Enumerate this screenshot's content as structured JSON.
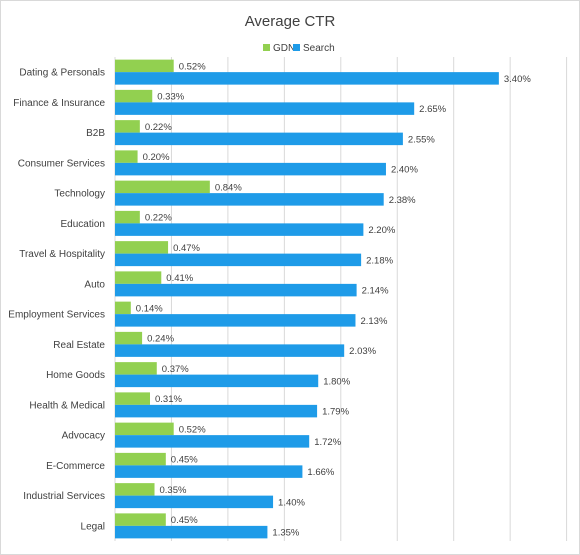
{
  "chart_data": {
    "type": "bar",
    "orientation": "horizontal",
    "title": "Average CTR",
    "legend_position": "top",
    "grid": true,
    "xlim": [
      0,
      0.04
    ],
    "value_format": "percent_2dp",
    "categories": [
      "Dating & Personals",
      "Finance & Insurance",
      "B2B",
      "Consumer Services",
      "Technology",
      "Education",
      "Travel & Hospitality",
      "Auto",
      "Employment Services",
      "Real Estate",
      "Home Goods",
      "Health & Medical",
      "Advocacy",
      "E-Commerce",
      "Industrial Services",
      "Legal"
    ],
    "series": [
      {
        "name": "GDN",
        "color": "#92d050",
        "values": [
          0.0052,
          0.0033,
          0.0022,
          0.002,
          0.0084,
          0.0022,
          0.0047,
          0.0041,
          0.0014,
          0.0024,
          0.0037,
          0.0031,
          0.0052,
          0.0045,
          0.0035,
          0.0045
        ],
        "labels": [
          "0.52%",
          "0.33%",
          "0.22%",
          "0.20%",
          "0.84%",
          "0.22%",
          "0.47%",
          "0.41%",
          "0.14%",
          "0.24%",
          "0.37%",
          "0.31%",
          "0.52%",
          "0.45%",
          "0.35%",
          "0.45%"
        ]
      },
      {
        "name": "Search",
        "color": "#1e9be8",
        "values": [
          0.034,
          0.0265,
          0.0255,
          0.024,
          0.0238,
          0.022,
          0.0218,
          0.0214,
          0.0213,
          0.0203,
          0.018,
          0.0179,
          0.0172,
          0.0166,
          0.014,
          0.0135
        ],
        "labels": [
          "3.40%",
          "2.65%",
          "2.55%",
          "2.40%",
          "2.38%",
          "2.20%",
          "2.18%",
          "2.14%",
          "2.13%",
          "2.03%",
          "1.80%",
          "1.79%",
          "1.72%",
          "1.66%",
          "1.40%",
          "1.35%"
        ]
      }
    ]
  },
  "colors": {
    "gridline": "#d9d9d9",
    "text": "#404040"
  }
}
